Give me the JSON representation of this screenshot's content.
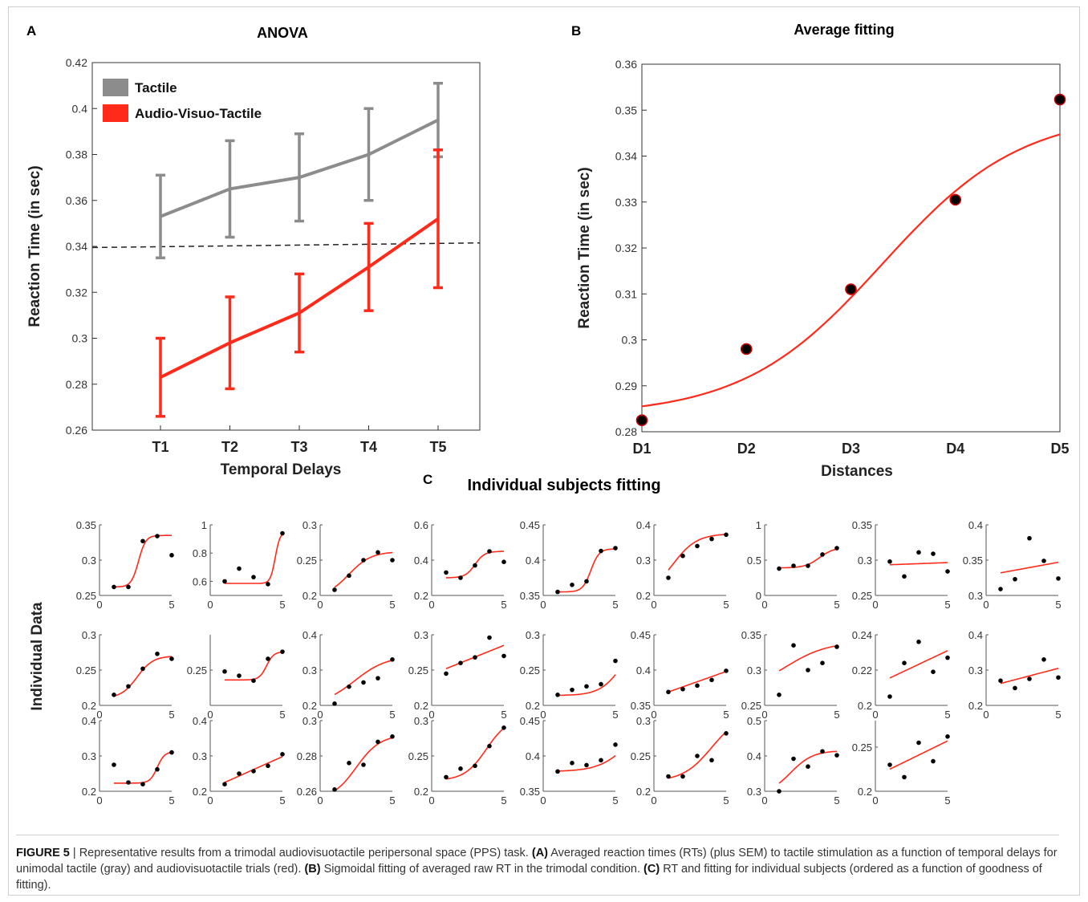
{
  "chart_data": [
    {
      "panel_letter": "A",
      "type": "line",
      "title": "ANOVA",
      "xlabel": "Temporal Delays",
      "ylabel": "Reaction Time (in sec)",
      "categories": [
        "T1",
        "T2",
        "T3",
        "T4",
        "T5"
      ],
      "ylim": [
        0.26,
        0.42
      ],
      "yticks": [
        "0.26",
        "0.28",
        "0.3",
        "0.32",
        "0.34",
        "0.36",
        "0.38",
        "0.4",
        "0.42"
      ],
      "legend": "top-left",
      "series": [
        {
          "name": "Tactile",
          "color": "#8c8c8c",
          "values": [
            0.353,
            0.365,
            0.37,
            0.38,
            0.395
          ],
          "err": [
            0.018,
            0.021,
            0.019,
            0.02,
            0.016
          ]
        },
        {
          "name": "Audio-Visuo-Tactile",
          "color": "#ff2a1a",
          "values": [
            0.283,
            0.298,
            0.311,
            0.331,
            0.352
          ],
          "err": [
            0.017,
            0.02,
            0.017,
            0.019,
            0.03
          ]
        }
      ],
      "reference_line": {
        "y_start": 0.3395,
        "y_end": 0.3415,
        "style": "dashed"
      }
    },
    {
      "panel_letter": "B",
      "type": "scatter",
      "title": "Average fitting",
      "xlabel": "Distances",
      "ylabel": "Reaction Time (in sec)",
      "categories": [
        "D1",
        "D2",
        "D3",
        "D4",
        "D5"
      ],
      "ylim": [
        0.28,
        0.36
      ],
      "yticks": [
        "0.28",
        "0.29",
        "0.3",
        "0.31",
        "0.32",
        "0.33",
        "0.34",
        "0.35",
        "0.36"
      ],
      "points": [
        0.2825,
        0.298,
        0.311,
        0.3305,
        0.3523
      ],
      "fit": {
        "type": "sigmoid",
        "ymin": 0.2835,
        "ymax": 0.3495,
        "x0": 3.3,
        "slope": 1.5,
        "color": "#ff2a1a"
      }
    },
    {
      "panel_letter": "C",
      "type": "scatter",
      "title": "Individual subjects fitting",
      "ylabel": "Individual Data",
      "xlim": [
        0,
        5
      ],
      "xticks": [
        "0",
        "5"
      ],
      "subplots": [
        {
          "yticks": [
            "0.25",
            "0.3",
            "0.35"
          ],
          "ylim": [
            0.25,
            0.35
          ],
          "points": [
            0.262,
            0.262,
            0.327,
            0.334,
            0.307
          ],
          "fit": {
            "type": "sigmoid",
            "ymin": 0.262,
            "ymax": 0.335,
            "x0": 2.7,
            "slope": 4
          }
        },
        {
          "yticks": [
            "0.6",
            "0.8",
            "1"
          ],
          "ylim": [
            0.5,
            1.0
          ],
          "points": [
            0.6,
            0.69,
            0.63,
            0.58,
            0.94
          ],
          "fit": {
            "type": "sigmoid",
            "ymin": 0.585,
            "ymax": 0.95,
            "x0": 4.5,
            "slope": 6
          }
        },
        {
          "yticks": [
            "0.2",
            "0.25",
            "0.3"
          ],
          "ylim": [
            0.2,
            0.3
          ],
          "points": [
            0.208,
            0.228,
            0.25,
            0.261,
            0.25
          ],
          "fit": {
            "type": "sigmoid",
            "ymin": 0.198,
            "ymax": 0.262,
            "x0": 2.0,
            "slope": 1.3
          }
        },
        {
          "yticks": [
            "0.2",
            "0.4",
            "0.6"
          ],
          "ylim": [
            0.2,
            0.6
          ],
          "points": [
            0.33,
            0.3,
            0.37,
            0.45,
            0.39
          ],
          "fit": {
            "type": "sigmoid",
            "ymin": 0.3,
            "ymax": 0.45,
            "x0": 3.0,
            "slope": 3
          }
        },
        {
          "yticks": [
            "0.35",
            "0.4",
            "0.45"
          ],
          "ylim": [
            0.35,
            0.45
          ],
          "points": [
            0.355,
            0.365,
            0.37,
            0.413,
            0.417
          ],
          "fit": {
            "type": "sigmoid",
            "ymin": 0.355,
            "ymax": 0.416,
            "x0": 3.3,
            "slope": 3.5
          }
        },
        {
          "yticks": [
            "0.2",
            "0.3",
            "0.4"
          ],
          "ylim": [
            0.2,
            0.4
          ],
          "points": [
            0.25,
            0.312,
            0.34,
            0.36,
            0.372
          ],
          "fit": {
            "type": "sigmoid",
            "ymin": 0.2,
            "ymax": 0.375,
            "x0": 1.3,
            "slope": 1.2
          }
        },
        {
          "yticks": [
            "0",
            "0.5",
            "1"
          ],
          "ylim": [
            0,
            1.0
          ],
          "points": [
            0.38,
            0.42,
            0.42,
            0.58,
            0.67
          ],
          "fit": {
            "type": "sigmoid",
            "ymin": 0.39,
            "ymax": 0.68,
            "x0": 3.8,
            "slope": 2
          }
        },
        {
          "yticks": [
            "0.25",
            "0.3",
            "0.35"
          ],
          "ylim": [
            0.25,
            0.35
          ],
          "points": [
            0.298,
            0.277,
            0.311,
            0.309,
            0.284
          ],
          "fit": {
            "type": "linear",
            "y1": 0.2935,
            "y5": 0.2965
          }
        },
        {
          "yticks": [
            "0.3",
            "0.35",
            "0.4"
          ],
          "ylim": [
            0.3,
            0.4
          ],
          "points": [
            0.309,
            0.323,
            0.381,
            0.349,
            0.324
          ],
          "fit": {
            "type": "linear",
            "y1": 0.332,
            "y5": 0.347
          }
        },
        {
          "yticks": [
            "0.2",
            "0.25",
            "0.3"
          ],
          "ylim": [
            0.2,
            0.3
          ],
          "points": [
            0.215,
            0.227,
            0.252,
            0.273,
            0.266
          ],
          "fit": {
            "type": "sigmoid",
            "ymin": 0.21,
            "ymax": 0.27,
            "x0": 2.6,
            "slope": 1.8
          }
        },
        {
          "yticks": [
            "0.25"
          ],
          "ylim": [
            0.2,
            0.3
          ],
          "points": [
            0.248,
            0.242,
            0.235,
            0.266,
            0.276
          ],
          "fit": {
            "type": "sigmoid",
            "ymin": 0.236,
            "ymax": 0.276,
            "x0": 3.9,
            "slope": 4
          }
        },
        {
          "yticks": [
            "0.2",
            "0.3",
            "0.4"
          ],
          "ylim": [
            0.2,
            0.4
          ],
          "points": [
            0.205,
            0.253,
            0.265,
            0.277,
            0.33
          ],
          "fit": {
            "type": "sigmoid",
            "ymin": 0.2,
            "ymax": 0.34,
            "x0": 2.4,
            "slope": 0.9
          }
        },
        {
          "yticks": [
            "0.2",
            "0.25",
            "0.3"
          ],
          "ylim": [
            0.2,
            0.3
          ],
          "points": [
            0.245,
            0.26,
            0.268,
            0.296,
            0.27
          ],
          "fit": {
            "type": "linear",
            "y1": 0.252,
            "y5": 0.285
          }
        },
        {
          "yticks": [
            "0.2",
            "0.25",
            "0.3"
          ],
          "ylim": [
            0.2,
            0.3
          ],
          "points": [
            0.215,
            0.222,
            0.227,
            0.23,
            0.263
          ],
          "fit": {
            "type": "sigmoid",
            "ymin": 0.214,
            "ymax": 0.3,
            "x0": 5.5,
            "slope": 1.3
          }
        },
        {
          "yticks": [
            "0.35",
            "0.4",
            "0.45"
          ],
          "ylim": [
            0.35,
            0.45
          ],
          "points": [
            0.369,
            0.373,
            0.378,
            0.386,
            0.399
          ],
          "fit": {
            "type": "linear",
            "y1": 0.369,
            "y5": 0.398
          }
        },
        {
          "yticks": [
            "0.25",
            "0.3",
            "0.35"
          ],
          "ylim": [
            0.25,
            0.35
          ],
          "points": [
            0.265,
            0.335,
            0.3,
            0.31,
            0.333
          ],
          "fit": {
            "type": "sigmoid",
            "ymin": 0.27,
            "ymax": 0.34,
            "x0": 1.5,
            "slope": 0.7
          }
        },
        {
          "yticks": [
            "0.2",
            "0.22",
            "0.24"
          ],
          "ylim": [
            0.2,
            0.24
          ],
          "points": [
            0.205,
            0.224,
            0.236,
            0.219,
            0.227
          ],
          "fit": {
            "type": "linear",
            "y1": 0.2155,
            "y5": 0.231
          }
        },
        {
          "yticks": [
            "0.2",
            "0.3",
            "0.4"
          ],
          "ylim": [
            0.2,
            0.4
          ],
          "points": [
            0.27,
            0.249,
            0.275,
            0.33,
            0.279
          ],
          "fit": {
            "type": "linear",
            "y1": 0.262,
            "y5": 0.305
          }
        },
        {
          "yticks": [
            "0.2",
            "0.3",
            "0.4"
          ],
          "ylim": [
            0.2,
            0.4
          ],
          "points": [
            0.275,
            0.225,
            0.22,
            0.262,
            0.31
          ],
          "fit": {
            "type": "sigmoid",
            "ymin": 0.223,
            "ymax": 0.312,
            "x0": 4.0,
            "slope": 4
          }
        },
        {
          "yticks": [
            "0.2",
            "0.3",
            "0.4"
          ],
          "ylim": [
            0.2,
            0.4
          ],
          "points": [
            0.22,
            0.25,
            0.257,
            0.272,
            0.305
          ],
          "fit": {
            "type": "linear",
            "y1": 0.225,
            "y5": 0.298
          }
        },
        {
          "yticks": [
            "0.26",
            "0.28",
            "0.3"
          ],
          "ylim": [
            0.26,
            0.3
          ],
          "points": [
            0.261,
            0.276,
            0.275,
            0.288,
            0.291
          ],
          "fit": {
            "type": "sigmoid",
            "ymin": 0.255,
            "ymax": 0.292,
            "x0": 2.5,
            "slope": 1.2
          }
        },
        {
          "yticks": [
            "0.2",
            "0.25",
            "0.3"
          ],
          "ylim": [
            0.2,
            0.3
          ],
          "points": [
            0.22,
            0.232,
            0.236,
            0.264,
            0.29
          ],
          "fit": {
            "type": "sigmoid",
            "ymin": 0.215,
            "ymax": 0.305,
            "x0": 3.8,
            "slope": 1.3
          }
        },
        {
          "yticks": [
            "0.35",
            "0.4",
            "0.45"
          ],
          "ylim": [
            0.35,
            0.45
          ],
          "points": [
            0.378,
            0.39,
            0.387,
            0.394,
            0.416
          ],
          "fit": {
            "type": "sigmoid",
            "ymin": 0.378,
            "ymax": 0.45,
            "x0": 5.8,
            "slope": 1.0
          }
        },
        {
          "yticks": [
            "0.2",
            "0.25",
            "0.3"
          ],
          "ylim": [
            0.2,
            0.3
          ],
          "points": [
            0.221,
            0.221,
            0.25,
            0.244,
            0.282
          ],
          "fit": {
            "type": "sigmoid",
            "ymin": 0.214,
            "ymax": 0.31,
            "x0": 4.0,
            "slope": 1.0
          }
        },
        {
          "yticks": [
            "0.3",
            "0.4",
            "0.5"
          ],
          "ylim": [
            0.3,
            0.5
          ],
          "points": [
            0.3,
            0.392,
            0.37,
            0.413,
            0.402
          ],
          "fit": {
            "type": "sigmoid",
            "ymin": 0.29,
            "ymax": 0.415,
            "x0": 1.8,
            "slope": 1.3
          }
        },
        {
          "yticks": [
            "0.2",
            "0.25"
          ],
          "ylim": [
            0.2,
            0.28
          ],
          "points": [
            0.23,
            0.216,
            0.255,
            0.234,
            0.262
          ],
          "fit": {
            "type": "linear",
            "y1": 0.225,
            "y5": 0.257
          }
        }
      ]
    }
  ],
  "caption": {
    "label": "FIGURE 5",
    "sep": " | ",
    "part0": "Representative results from a trimodal audiovisuotactile peripersonal space (PPS) task. ",
    "a_tag": "(A)",
    "part1": " Averaged reaction times (RTs) (plus SEM) to tactile stimulation as a function of temporal delays for unimodal tactile (gray) and audiovisuotactile trials (red). ",
    "b_tag": "(B)",
    "part2": " Sigmoidal fitting of averaged raw RT in the trimodal condition. ",
    "c_tag": "(C)",
    "part3": " RT and fitting for individual subjects (ordered as a function of goodness of fitting)."
  }
}
